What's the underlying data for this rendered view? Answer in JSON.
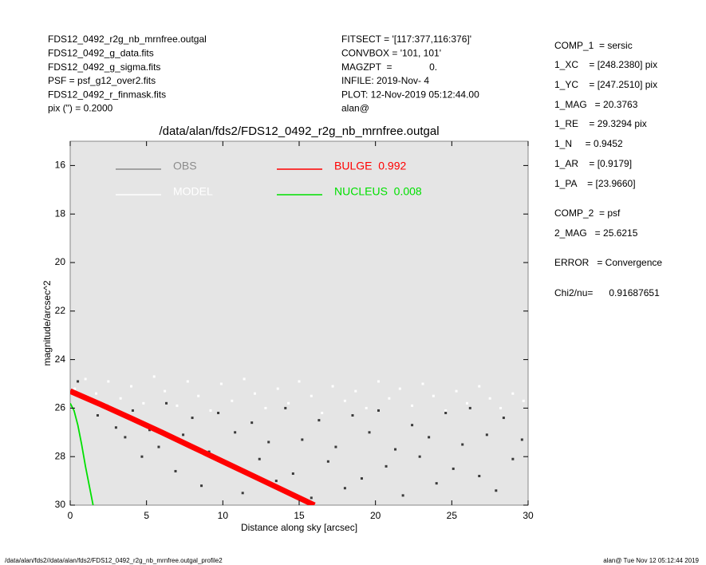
{
  "header": {
    "left": [
      "FDS12_0492_r2g_nb_mrnfree.outgal",
      "FDS12_0492_g_data.fits",
      "FDS12_0492_g_sigma.fits",
      "PSF     = psf_g12_over2.fits",
      "FDS12_0492_r_finmask.fits",
      "pix (\") =  0.2000"
    ],
    "middle": [
      "FITSECT = '[117:377,116:376]'",
      "CONVBOX = '101, 101'",
      "MAGZPT  =              0.",
      "INFILE: 2019-Nov- 4",
      "PLOT: 12-Nov-2019 05:12:44.00",
      "alan@"
    ],
    "right": [
      "COMP_1  = sersic",
      "1_XC    = [248.2380] pix",
      "1_YC    = [247.2510] pix",
      "1_MAG   = 20.3763",
      "1_RE    = 29.3294 pix",
      "1_N     = 0.9452",
      "1_AR    = [0.9179]",
      "1_PA    = [23.9660]",
      "COMP_2  = psf",
      "2_MAG   = 25.6215",
      "ERROR   = Convergence",
      "Chi2/nu=      0.91687651"
    ]
  },
  "footer": {
    "left": "/data/alan/fds2//data/alan/fds2/FDS12_0492_r2g_nb_mrnfree.outgal_profile2",
    "right": "alan@  Tue Nov 12 05:12:44 2019"
  },
  "chart_data": {
    "type": "scatter",
    "title": "/data/alan/fds2/FDS12_0492_r2g_nb_mrnfree.outgal",
    "xlabel": "Distance along sky [arcsec]",
    "ylabel": "magnitude/arcsec^2",
    "xlim": [
      0,
      30
    ],
    "ylim": [
      30,
      15
    ],
    "xticks": [
      0,
      5,
      10,
      15,
      20,
      25,
      30
    ],
    "yticks": [
      16,
      18,
      20,
      22,
      24,
      26,
      28,
      30
    ],
    "series": [
      {
        "name": "OBS",
        "color": "#3a3a3a",
        "legend_color": "#8c8c8c",
        "style": "points",
        "x": [
          0.5,
          1.2,
          1.8,
          2.4,
          3.0,
          3.6,
          4.1,
          4.7,
          5.2,
          5.8,
          6.3,
          6.9,
          7.4,
          8.0,
          8.6,
          9.1,
          9.7,
          10.2,
          10.8,
          11.3,
          11.9,
          12.4,
          13.0,
          13.5,
          14.1,
          14.6,
          15.2,
          15.8,
          16.3,
          16.9,
          17.4,
          18.0,
          18.5,
          19.1,
          19.6,
          20.2,
          20.7,
          21.3,
          21.8,
          22.4,
          22.9,
          23.5,
          24.0,
          24.6,
          25.1,
          25.7,
          26.2,
          26.8,
          27.3,
          27.9,
          28.4,
          29.0,
          29.6
        ],
        "values": [
          24.9,
          25.6,
          26.3,
          25.9,
          26.8,
          27.2,
          26.1,
          28.0,
          26.9,
          27.6,
          25.8,
          28.6,
          27.1,
          26.4,
          29.2,
          27.8,
          26.2,
          28.3,
          27.0,
          29.5,
          26.6,
          28.1,
          27.4,
          29.0,
          26.0,
          28.7,
          27.3,
          29.7,
          26.5,
          28.2,
          27.6,
          29.3,
          26.3,
          28.9,
          27.0,
          26.1,
          28.4,
          27.7,
          29.6,
          26.7,
          28.0,
          27.2,
          29.1,
          26.2,
          28.5,
          27.5,
          26.0,
          28.8,
          27.1,
          29.4,
          26.4,
          28.1,
          27.3
        ]
      },
      {
        "name": "MODEL",
        "color": "#ffffff",
        "legend_color": "#ffffff",
        "style": "points",
        "x": [
          0.3,
          1.0,
          1.7,
          2.5,
          3.3,
          4.0,
          4.8,
          5.5,
          6.2,
          7.0,
          7.7,
          8.4,
          9.2,
          9.9,
          10.6,
          11.4,
          12.1,
          12.8,
          13.6,
          14.3,
          15.0,
          15.8,
          16.5,
          17.2,
          18.0,
          18.7,
          19.4,
          20.2,
          20.9,
          21.6,
          22.4,
          23.1,
          23.8,
          24.6,
          25.3,
          26.0,
          26.8,
          27.5,
          28.2,
          29.0,
          29.7
        ],
        "values": [
          25.2,
          24.8,
          25.4,
          24.9,
          25.6,
          25.1,
          25.8,
          24.7,
          25.3,
          25.9,
          24.9,
          25.5,
          26.1,
          25.0,
          25.7,
          24.8,
          25.4,
          26.0,
          25.2,
          25.8,
          24.9,
          25.5,
          26.2,
          25.1,
          25.7,
          25.3,
          26.0,
          24.9,
          25.6,
          25.2,
          25.9,
          25.0,
          25.5,
          26.1,
          25.3,
          25.8,
          25.1,
          25.6,
          26.0,
          25.4,
          25.7
        ]
      },
      {
        "name": "BULGE  0.992",
        "color": "#ff0000",
        "legend_color": "#ff0000",
        "style": "line",
        "x": [
          0,
          2,
          4,
          6,
          8,
          10,
          12,
          14,
          16
        ],
        "values": [
          25.3,
          25.85,
          26.42,
          27.0,
          27.6,
          28.2,
          28.8,
          29.4,
          30.0
        ]
      },
      {
        "name": "NUCLEUS  0.008",
        "color": "#00e000",
        "legend_color": "#00e000",
        "style": "line",
        "x": [
          0,
          0.25,
          0.5,
          0.75,
          1.0,
          1.25,
          1.5
        ],
        "values": [
          25.8,
          26.1,
          26.7,
          27.5,
          28.4,
          29.2,
          30.0
        ]
      }
    ]
  }
}
